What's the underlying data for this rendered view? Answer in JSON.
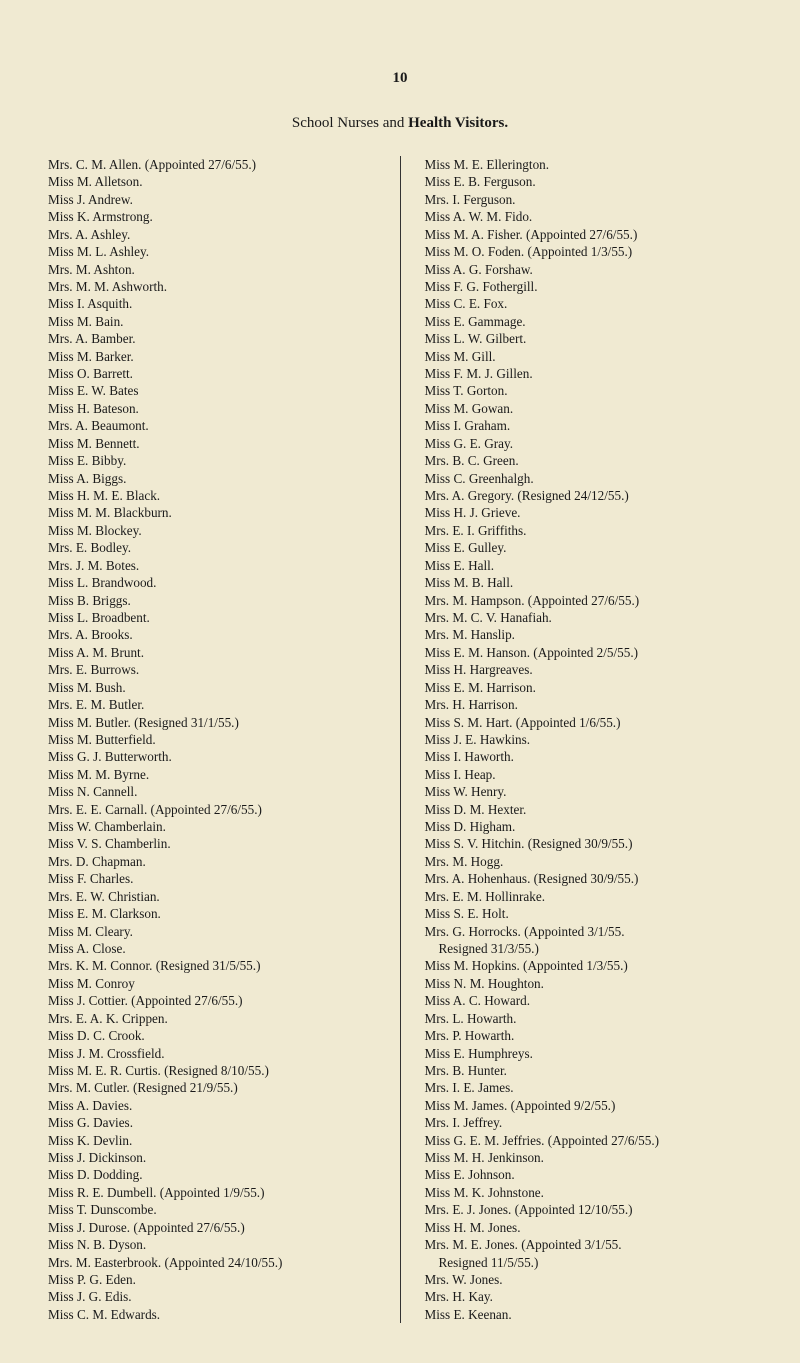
{
  "page_number": "10",
  "heading_prefix": "School Nurses and ",
  "heading_bold": "Health Visitors.",
  "colors": {
    "background": "#f0ead2",
    "text": "#1a1a1a"
  },
  "left_column": [
    {
      "t": "Mrs. C. M. Allen.   (Appointed 27/6/55.)"
    },
    {
      "t": "Miss M. Alletson."
    },
    {
      "t": "Miss J. Andrew."
    },
    {
      "t": "Miss K. Armstrong."
    },
    {
      "t": "Mrs. A. Ashley."
    },
    {
      "t": "Miss M. L. Ashley."
    },
    {
      "t": "Mrs. M. Ashton."
    },
    {
      "t": "Mrs. M. M. Ashworth."
    },
    {
      "t": "Miss I. Asquith."
    },
    {
      "t": "Miss M. Bain."
    },
    {
      "t": "Mrs. A. Bamber."
    },
    {
      "t": "Miss M. Barker."
    },
    {
      "t": "Miss O. Barrett."
    },
    {
      "t": "Miss E. W. Bates"
    },
    {
      "t": "Miss H. Bateson."
    },
    {
      "t": "Mrs. A. Beaumont."
    },
    {
      "t": "Miss M. Bennett."
    },
    {
      "t": "Miss E. Bibby."
    },
    {
      "t": "Miss A. Biggs."
    },
    {
      "t": "Miss H. M. E. Black."
    },
    {
      "t": "Miss M. M. Blackburn."
    },
    {
      "t": "Miss M. Blockey."
    },
    {
      "t": "Mrs. E. Bodley."
    },
    {
      "t": "Mrs. J. M. Botes."
    },
    {
      "t": "Miss L. Brandwood."
    },
    {
      "t": "Miss B. Briggs."
    },
    {
      "t": "Miss L. Broadbent."
    },
    {
      "t": "Mrs. A. Brooks."
    },
    {
      "t": "Miss A. M. Brunt."
    },
    {
      "t": "Mrs. E. Burrows."
    },
    {
      "t": "Miss M. Bush."
    },
    {
      "t": "Mrs. E. M. Butler."
    },
    {
      "t": "Miss M. Butler.   (Resigned 31/1/55.)"
    },
    {
      "t": "Miss M. Butterfield."
    },
    {
      "t": "Miss G. J. Butterworth."
    },
    {
      "t": "Miss M. M. Byrne."
    },
    {
      "t": "Miss N. Cannell."
    },
    {
      "t": "Mrs. E. E. Carnall.   (Appointed 27/6/55.)"
    },
    {
      "t": "Miss W. Chamberlain."
    },
    {
      "t": "Miss V. S. Chamberlin."
    },
    {
      "t": "Mrs. D. Chapman."
    },
    {
      "t": "Miss F. Charles."
    },
    {
      "t": "Mrs. E. W. Christian."
    },
    {
      "t": "Miss E. M. Clarkson."
    },
    {
      "t": "Miss M. Cleary."
    },
    {
      "t": "Miss A. Close."
    },
    {
      "t": "Mrs. K. M. Connor.   (Resigned 31/5/55.)"
    },
    {
      "t": "Miss M. Conroy"
    },
    {
      "t": "Miss J. Cottier.   (Appointed 27/6/55.)"
    },
    {
      "t": "Mrs. E. A. K. Crippen."
    },
    {
      "t": "Miss D. C. Crook."
    },
    {
      "t": "Miss J. M. Crossfield."
    },
    {
      "t": "Miss M. E. R. Curtis.   (Resigned 8/10/55.)"
    },
    {
      "t": "Mrs. M. Cutler.   (Resigned 21/9/55.)"
    },
    {
      "t": "Miss A. Davies."
    },
    {
      "t": "Miss G. Davies."
    },
    {
      "t": "Miss K. Devlin."
    },
    {
      "t": "Miss J. Dickinson."
    },
    {
      "t": "Miss D. Dodding."
    },
    {
      "t": "Miss R. E. Dumbell.   (Appointed 1/9/55.)"
    },
    {
      "t": "Miss T. Dunscombe."
    },
    {
      "t": "Miss J. Durose.   (Appointed 27/6/55.)"
    },
    {
      "t": "Miss N. B. Dyson."
    },
    {
      "t": "Mrs. M. Easterbrook.   (Appointed 24/10/55.)"
    },
    {
      "t": "Miss P. G. Eden."
    },
    {
      "t": "Miss J. G. Edis."
    },
    {
      "t": "Miss C. M. Edwards."
    }
  ],
  "right_column": [
    {
      "t": "Miss M. E. Ellerington."
    },
    {
      "t": "Miss E. B. Ferguson."
    },
    {
      "t": "Mrs. I. Ferguson."
    },
    {
      "t": "Miss A. W. M. Fido."
    },
    {
      "t": "Miss M. A. Fisher.   (Appointed 27/6/55.)"
    },
    {
      "t": "Miss M. O. Foden.   (Appointed 1/3/55.)"
    },
    {
      "t": "Miss A. G. Forshaw."
    },
    {
      "t": "Miss F. G. Fothergill."
    },
    {
      "t": "Miss C. E. Fox."
    },
    {
      "t": "Miss E. Gammage."
    },
    {
      "t": "Miss L. W. Gilbert."
    },
    {
      "t": "Miss M. Gill."
    },
    {
      "t": "Miss F. M. J. Gillen."
    },
    {
      "t": "Miss T. Gorton."
    },
    {
      "t": "Miss M. Gowan."
    },
    {
      "t": "Miss I. Graham."
    },
    {
      "t": "Miss G. E. Gray."
    },
    {
      "t": "Mrs. B. C. Green."
    },
    {
      "t": "Miss C. Greenhalgh."
    },
    {
      "t": "Mrs. A. Gregory.   (Resigned 24/12/55.)"
    },
    {
      "t": "Miss H. J. Grieve."
    },
    {
      "t": "Mrs. E. I. Griffiths."
    },
    {
      "t": "Miss E. Gulley."
    },
    {
      "t": "Miss E. Hall."
    },
    {
      "t": "Miss M. B. Hall."
    },
    {
      "t": "Mrs. M. Hampson.   (Appointed 27/6/55.)"
    },
    {
      "t": "Mrs. M. C. V. Hanafiah."
    },
    {
      "t": "Mrs. M. Hanslip."
    },
    {
      "t": "Miss E. M. Hanson.   (Appointed 2/5/55.)"
    },
    {
      "t": "Miss H. Hargreaves."
    },
    {
      "t": "Miss E. M. Harrison."
    },
    {
      "t": "Mrs. H. Harrison."
    },
    {
      "t": "Miss S. M. Hart.   (Appointed 1/6/55.)"
    },
    {
      "t": "Miss J. E. Hawkins."
    },
    {
      "t": "Miss I. Haworth."
    },
    {
      "t": "Miss I. Heap."
    },
    {
      "t": "Miss W. Henry."
    },
    {
      "t": "Miss D. M. Hexter."
    },
    {
      "t": "Miss D. Higham."
    },
    {
      "t": "Miss S. V. Hitchin.   (Resigned 30/9/55.)"
    },
    {
      "t": "Mrs. M. Hogg."
    },
    {
      "t": "Mrs. A. Hohenhaus.   (Resigned 30/9/55.)"
    },
    {
      "t": "Mrs. E. M. Hollinrake."
    },
    {
      "t": "Miss S. E. Holt."
    },
    {
      "t": "Mrs. G. Horrocks.   (Appointed 3/1/55."
    },
    {
      "t": "Resigned 31/3/55.)",
      "indent": true
    },
    {
      "t": "Miss M. Hopkins.   (Appointed 1/3/55.)"
    },
    {
      "t": "Miss N. M. Houghton."
    },
    {
      "t": "Miss A. C. Howard."
    },
    {
      "t": "Mrs. L. Howarth."
    },
    {
      "t": "Mrs. P. Howarth."
    },
    {
      "t": "Miss E. Humphreys."
    },
    {
      "t": "Mrs. B. Hunter."
    },
    {
      "t": "Mrs. I. E. James."
    },
    {
      "t": "Miss M. James.   (Appointed 9/2/55.)"
    },
    {
      "t": "Mrs. I. Jeffrey."
    },
    {
      "t": "Miss G. E. M. Jeffries.   (Appointed 27/6/55.)"
    },
    {
      "t": "Miss M. H. Jenkinson."
    },
    {
      "t": "Miss E. Johnson."
    },
    {
      "t": "Miss M. K. Johnstone."
    },
    {
      "t": "Mrs. E. J. Jones.   (Appointed 12/10/55.)"
    },
    {
      "t": "Miss H. M. Jones."
    },
    {
      "t": "Mrs. M. E. Jones.   (Appointed 3/1/55."
    },
    {
      "t": "Resigned 11/5/55.)",
      "indent": true
    },
    {
      "t": "Mrs. W. Jones."
    },
    {
      "t": "Mrs. H. Kay."
    },
    {
      "t": "Miss E. Keenan."
    }
  ]
}
